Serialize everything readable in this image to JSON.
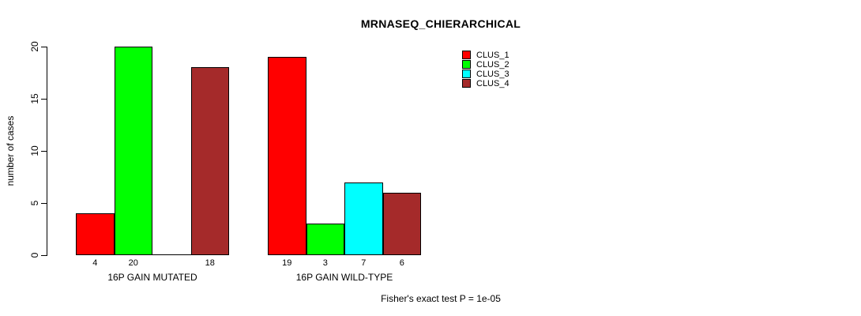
{
  "chart_data": {
    "type": "bar",
    "title": "MRNASEQ_CHIERARCHICAL",
    "xlabel": "",
    "ylabel": "number of cases",
    "ylim": [
      0,
      20
    ],
    "yticks": [
      0,
      5,
      10,
      15,
      20
    ],
    "grid": false,
    "legend_position": "top-right",
    "series": [
      {
        "name": "CLUS_1",
        "color": "#FF0000"
      },
      {
        "name": "CLUS_2",
        "color": "#00FF00"
      },
      {
        "name": "CLUS_3",
        "color": "#00FFFF"
      },
      {
        "name": "CLUS_4",
        "color": "#A52A2A"
      }
    ],
    "groups": [
      {
        "label": "16P GAIN MUTATED",
        "values": [
          4,
          20,
          0,
          18
        ],
        "value_labels": [
          "4",
          "20",
          null,
          "18"
        ]
      },
      {
        "label": "16P GAIN WILD-TYPE",
        "values": [
          19,
          3,
          7,
          6
        ],
        "value_labels": [
          "19",
          "3",
          "7",
          "6"
        ]
      }
    ],
    "annotation": "Fisher's exact test P = 1e-05"
  }
}
